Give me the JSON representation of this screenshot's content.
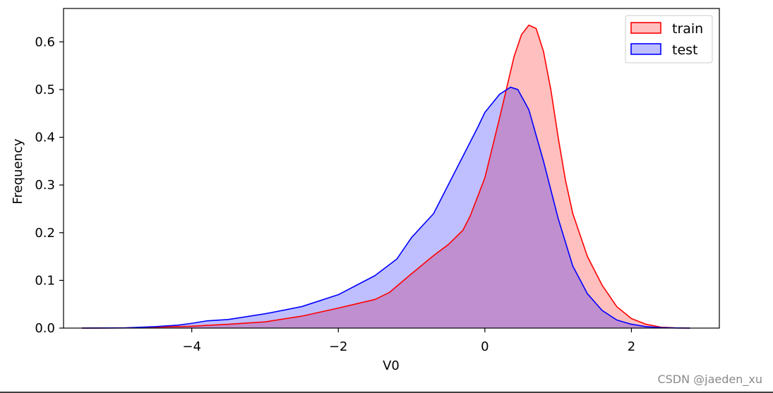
{
  "chart_data": {
    "type": "area",
    "xlabel": "V0",
    "ylabel": "Frequency",
    "xlim": [
      -5.75,
      3.2
    ],
    "ylim": [
      0,
      0.67
    ],
    "xticks": [
      -4,
      -2,
      0,
      2
    ],
    "xtick_labels": [
      "−4",
      "−2",
      "0",
      "2"
    ],
    "yticks": [
      0.0,
      0.1,
      0.2,
      0.3,
      0.4,
      0.5,
      0.6
    ],
    "ytick_labels": [
      "0.0",
      "0.1",
      "0.2",
      "0.3",
      "0.4",
      "0.5",
      "0.6"
    ],
    "grid": false,
    "legend_position": "top-right",
    "series": [
      {
        "name": "train",
        "color": "#ff0000",
        "fill": "#ff0000",
        "x": [
          -5.5,
          -4.9,
          -4.5,
          -4.0,
          -3.5,
          -3.0,
          -2.5,
          -2.0,
          -1.5,
          -1.3,
          -1.0,
          -0.7,
          -0.5,
          -0.3,
          -0.2,
          0.0,
          0.2,
          0.4,
          0.5,
          0.6,
          0.7,
          0.8,
          0.9,
          1.0,
          1.1,
          1.2,
          1.4,
          1.6,
          1.8,
          2.0,
          2.2,
          2.4,
          2.6,
          2.8
        ],
        "y": [
          0.0,
          0.0005,
          0.002,
          0.004,
          0.008,
          0.013,
          0.025,
          0.042,
          0.06,
          0.075,
          0.114,
          0.152,
          0.175,
          0.205,
          0.235,
          0.315,
          0.44,
          0.57,
          0.615,
          0.635,
          0.628,
          0.58,
          0.5,
          0.4,
          0.31,
          0.24,
          0.15,
          0.09,
          0.045,
          0.02,
          0.008,
          0.002,
          0.0005,
          0.0
        ]
      },
      {
        "name": "test",
        "color": "#0000ff",
        "fill": "#0000ff",
        "x": [
          -5.5,
          -4.9,
          -4.5,
          -4.2,
          -4.0,
          -3.8,
          -3.5,
          -3.0,
          -2.5,
          -2.0,
          -1.5,
          -1.2,
          -1.0,
          -0.7,
          -0.5,
          -0.3,
          -0.1,
          0.0,
          0.2,
          0.35,
          0.45,
          0.6,
          0.8,
          1.0,
          1.2,
          1.4,
          1.6,
          1.8,
          2.0,
          2.2,
          2.4,
          2.6,
          2.8
        ],
        "y": [
          0.0,
          0.0005,
          0.003,
          0.006,
          0.01,
          0.015,
          0.018,
          0.03,
          0.045,
          0.07,
          0.11,
          0.145,
          0.19,
          0.24,
          0.3,
          0.36,
          0.42,
          0.452,
          0.49,
          0.505,
          0.5,
          0.458,
          0.35,
          0.23,
          0.13,
          0.072,
          0.037,
          0.017,
          0.008,
          0.003,
          0.001,
          0.0002,
          0.0
        ]
      }
    ]
  },
  "watermark": "CSDN @jaeden_xu"
}
